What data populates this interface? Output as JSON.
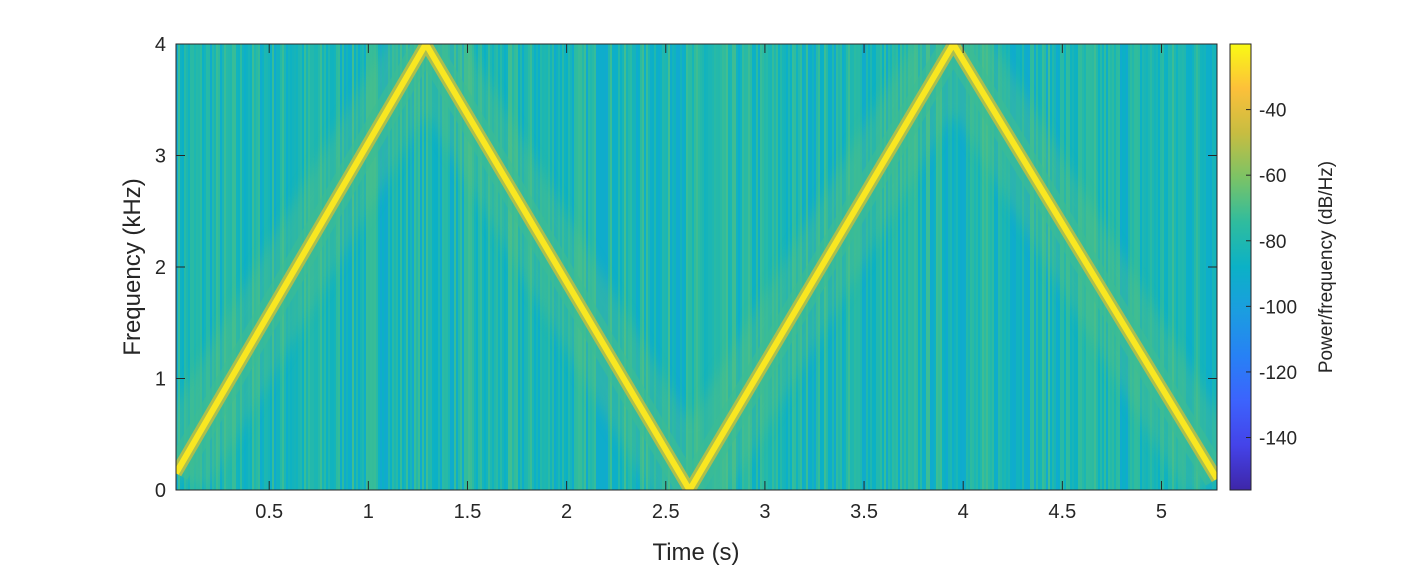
{
  "chart_data": {
    "type": "heatmap",
    "subtype": "spectrogram",
    "title": "",
    "xlabel": "Time (s)",
    "ylabel": "Frequency (kHz)",
    "xlim": [
      0.03,
      5.28
    ],
    "ylim": [
      0,
      4
    ],
    "x_ticks": [
      0.5,
      1,
      1.5,
      2,
      2.5,
      3,
      3.5,
      4,
      4.5,
      5
    ],
    "x_tick_labels": [
      "0.5",
      "1",
      "1.5",
      "2",
      "2.5",
      "3",
      "3.5",
      "4",
      "4.5",
      "5"
    ],
    "y_ticks": [
      0,
      1,
      2,
      3,
      4
    ],
    "y_tick_labels": [
      "0",
      "1",
      "2",
      "3",
      "4"
    ],
    "colorbar": {
      "label": "Power/frequency (dB/Hz)",
      "range": [
        -156,
        -20
      ],
      "ticks": [
        -40,
        -60,
        -80,
        -100,
        -120,
        -140
      ],
      "tick_labels": [
        "-40",
        "-60",
        "-80",
        "-100",
        "-120",
        "-140"
      ],
      "colormap": "parula"
    },
    "background_level_db": -82,
    "ridge_level_db": -28,
    "ridge": {
      "description": "triangular frequency sweep",
      "time_s": [
        0.03,
        1.29,
        2.62,
        3.95,
        5.28
      ],
      "frequency_khz": [
        0.15,
        4.0,
        0.0,
        4.0,
        0.1
      ]
    },
    "colors": {
      "ridge": "#f9e721",
      "background": "#2cb3a5",
      "axis": "#262626"
    }
  }
}
